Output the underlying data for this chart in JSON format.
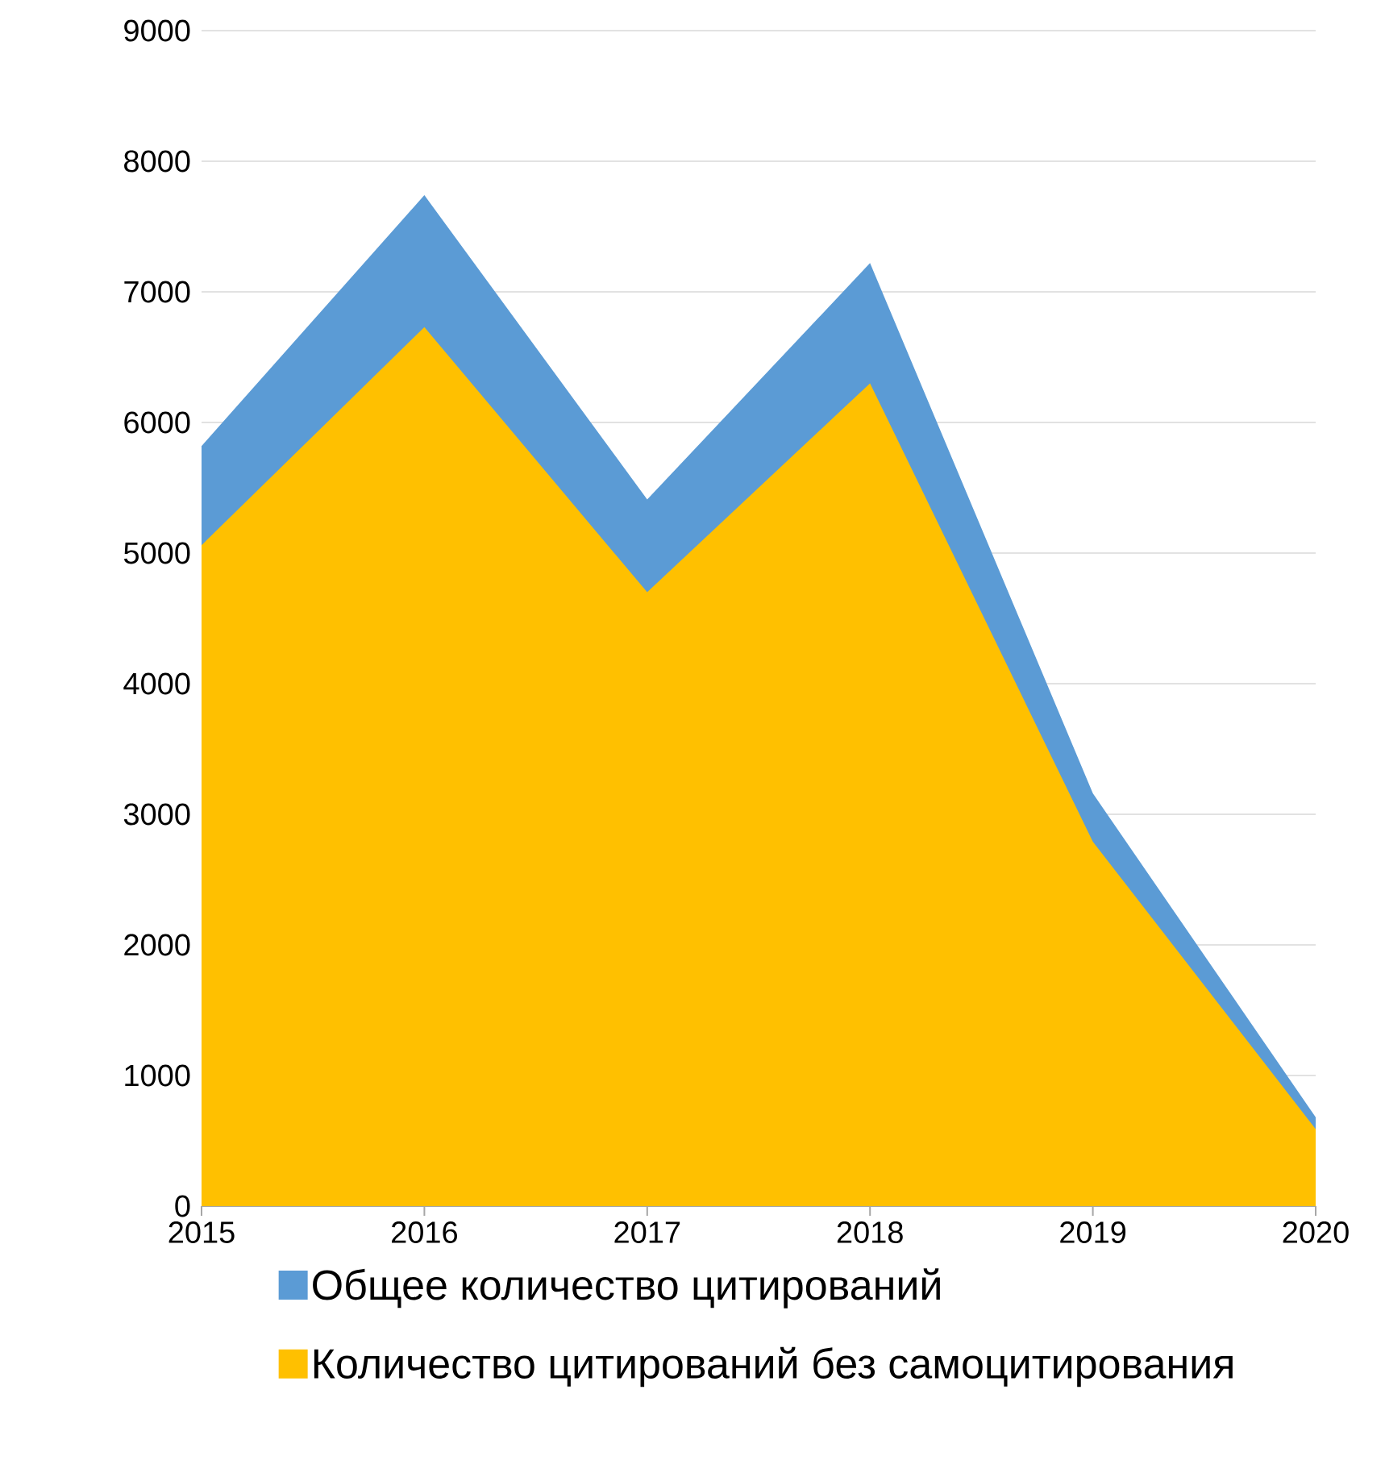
{
  "chart_data": {
    "type": "area",
    "categories": [
      "2015",
      "2016",
      "2017",
      "2018",
      "2019",
      "2020"
    ],
    "series": [
      {
        "name": "Общее количество цитирований",
        "color": "#5b9bd5",
        "values": [
          5820,
          7740,
          5410,
          7220,
          3160,
          680
        ]
      },
      {
        "name": "Количество цитирований без самоцитирования",
        "color": "#ffc000",
        "values": [
          5060,
          6730,
          4700,
          6300,
          2790,
          590
        ]
      }
    ],
    "ylim": [
      0,
      9000
    ],
    "yticks": [
      0,
      1000,
      2000,
      3000,
      4000,
      5000,
      6000,
      7000,
      8000,
      9000
    ],
    "grid": "y",
    "legend": "bottom"
  }
}
